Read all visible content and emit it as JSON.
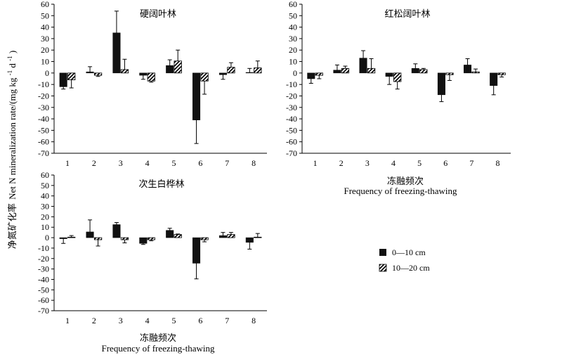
{
  "figure": {
    "ylabel_cn": "净氮矿化率",
    "ylabel_en": "Net N mineralization rate/(mg kg",
    "ylabel_sup1": "-1",
    "ylabel_mid": " d",
    "ylabel_sup2": "-1",
    "ylabel_end": ")",
    "xlabel_cn": "冻融频次",
    "xlabel_en": "Frequency of freezing-thawing",
    "legend": [
      {
        "label": "0—10 cm",
        "pattern": "solid"
      },
      {
        "label": "10—20 cm",
        "pattern": "hatched"
      }
    ]
  },
  "chart_data": [
    {
      "type": "bar",
      "title": "硬阔叶林",
      "categories": [
        "1",
        "2",
        "3",
        "4",
        "5",
        "6",
        "7",
        "8"
      ],
      "ylim": [
        -70,
        60
      ],
      "yticks": [
        -70,
        -60,
        -50,
        -40,
        -30,
        -20,
        -10,
        0,
        10,
        20,
        30,
        40,
        50,
        60
      ],
      "series": [
        {
          "name": "0—10 cm",
          "values": [
            -12,
            1,
            35,
            -2,
            6.5,
            -41,
            -1.5,
            0.5
          ],
          "errors": [
            2,
            4.5,
            19,
            3.5,
            5,
            20.5,
            4,
            3.5
          ]
        },
        {
          "name": "10—20 cm",
          "values": [
            -6,
            -2,
            3,
            -7,
            10.5,
            -7,
            5,
            4.5
          ],
          "errors": [
            7,
            1,
            9,
            1,
            9.5,
            11.5,
            4,
            6
          ]
        }
      ],
      "grid": false
    },
    {
      "type": "bar",
      "title": "红松阔叶林",
      "categories": [
        "1",
        "2",
        "3",
        "4",
        "5",
        "6",
        "7",
        "8"
      ],
      "ylim": [
        -70,
        60
      ],
      "yticks": [
        -70,
        -60,
        -50,
        -40,
        -30,
        -20,
        -10,
        0,
        10,
        20,
        30,
        40,
        50,
        60
      ],
      "series": [
        {
          "name": "0—10 cm",
          "values": [
            -5,
            2.5,
            13,
            -3,
            4,
            -19,
            7,
            -11
          ],
          "errors": [
            4,
            4.5,
            6.5,
            7,
            4,
            6,
            5.5,
            8
          ]
        },
        {
          "name": "10—20 cm",
          "values": [
            -2,
            4,
            4,
            -7.5,
            3,
            -1.5,
            1,
            -1.5
          ],
          "errors": [
            3,
            2,
            8.5,
            6.5,
            1,
            5,
            2.5,
            2
          ]
        }
      ],
      "grid": false
    },
    {
      "type": "bar",
      "title": "次生白桦林",
      "categories": [
        "1",
        "2",
        "3",
        "4",
        "5",
        "6",
        "7",
        "8"
      ],
      "ylim": [
        -70,
        60
      ],
      "yticks": [
        -70,
        -60,
        -50,
        -40,
        -30,
        -20,
        -10,
        0,
        10,
        20,
        30,
        40,
        50,
        60
      ],
      "series": [
        {
          "name": "0—10 cm",
          "values": [
            -1,
            5.5,
            12.5,
            -5.5,
            7,
            -24.5,
            2,
            -4.5
          ],
          "errors": [
            4.5,
            11.5,
            2,
            1,
            2,
            15,
            3,
            6.5
          ]
        },
        {
          "name": "10—20 cm",
          "values": [
            0.5,
            -2,
            -2,
            -2,
            3,
            -2,
            3,
            0.5
          ],
          "errors": [
            1.5,
            6,
            3,
            1,
            0.5,
            2,
            2,
            3.5
          ]
        }
      ],
      "grid": false
    }
  ]
}
